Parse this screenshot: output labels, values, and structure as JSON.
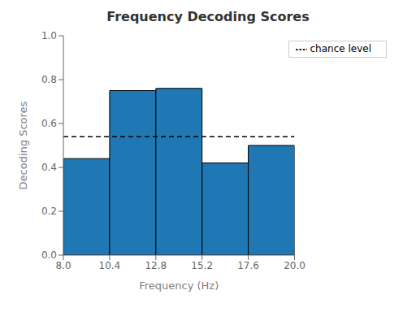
{
  "chart_data": {
    "type": "histogram",
    "title": "Frequency Decoding Scores",
    "xlabel": "Frequency (Hz)",
    "ylabel": "Decoding Scores",
    "bins": [
      8.0,
      10.4,
      12.8,
      15.2,
      17.6,
      20.0
    ],
    "values": [
      0.44,
      0.75,
      0.76,
      0.42,
      0.5
    ],
    "color": "#1f77b4",
    "hlines": [
      {
        "value": 0.54,
        "name": "chance level",
        "color": "black",
        "line_style": "dashed"
      }
    ],
    "legend": "upper right",
    "xlim": [
      8,
      20
    ],
    "ylim": [
      0,
      1
    ],
    "xticks": [
      {
        "value": 8,
        "label": "8.0"
      },
      10.4,
      12.8,
      15.2,
      17.6,
      {
        "value": 20,
        "label": "20.0"
      }
    ],
    "yticks": [
      {
        "value": 0,
        "label": "0.0"
      },
      0.2,
      0.4,
      0.6,
      0.8,
      {
        "value": 1,
        "label": "1.0"
      }
    ]
  }
}
